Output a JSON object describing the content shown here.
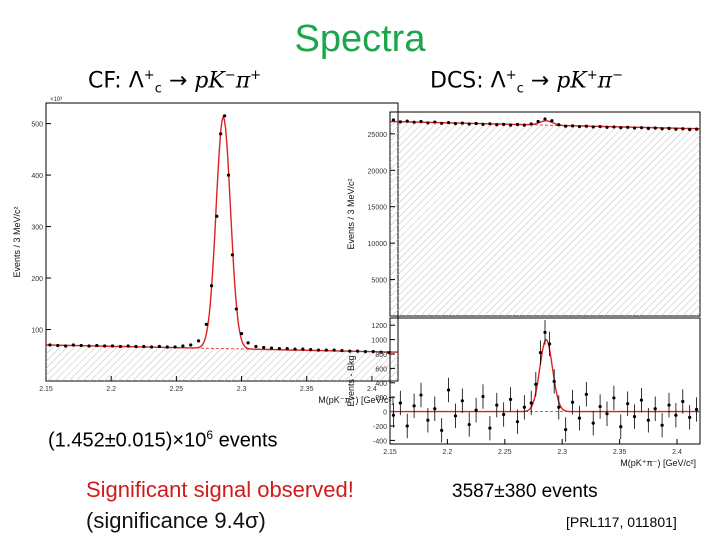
{
  "title": "Spectra",
  "cf": {
    "label_prefix": "CF:",
    "events_text": "(1.452±0.015)×10",
    "events_exp": "6",
    "events_suffix": " events"
  },
  "dcs": {
    "label_prefix": "DCS:",
    "events_text": "3587±380  events"
  },
  "notes": {
    "signal": "Significant signal observed!",
    "significance": "(significance 9.4σ)",
    "reference": "[PRL117, 011801]"
  },
  "colors": {
    "title": "#1aa64a",
    "fit": "#e02020",
    "signal_note": "#d11a1a",
    "hatch": "#bdbdbd"
  },
  "chart_data": [
    {
      "type": "scatter",
      "name": "cf",
      "title": "",
      "xlabel": "M(pK⁻π⁺) [GeV/c²]",
      "ylabel": "Events / 3 MeV/c²",
      "y_scale_label": "×10³",
      "xlim": [
        2.15,
        2.42
      ],
      "ylim": [
        0,
        540
      ],
      "xticks": [
        2.15,
        2.2,
        2.25,
        2.3,
        2.35,
        2.4
      ],
      "xtick_labels": [
        "2.15",
        "2.2",
        "2.25",
        "2.3",
        "2.35",
        "2.4"
      ],
      "yticks": [
        100,
        200,
        300,
        400,
        500
      ],
      "ytick_labels": [
        "100",
        "200",
        "300",
        "400",
        "500"
      ],
      "background_level": 70,
      "peak_center": 2.286,
      "peak_height": 450,
      "peak_sigma": 0.0055,
      "points": [
        [
          2.153,
          70
        ],
        [
          2.159,
          69
        ],
        [
          2.165,
          68
        ],
        [
          2.171,
          70
        ],
        [
          2.177,
          69
        ],
        [
          2.183,
          68
        ],
        [
          2.189,
          69
        ],
        [
          2.195,
          68
        ],
        [
          2.201,
          68
        ],
        [
          2.207,
          67
        ],
        [
          2.213,
          68
        ],
        [
          2.219,
          67
        ],
        [
          2.225,
          67
        ],
        [
          2.231,
          66
        ],
        [
          2.237,
          67
        ],
        [
          2.243,
          66
        ],
        [
          2.249,
          66
        ],
        [
          2.255,
          68
        ],
        [
          2.261,
          70
        ],
        [
          2.267,
          78
        ],
        [
          2.273,
          110
        ],
        [
          2.277,
          185
        ],
        [
          2.281,
          320
        ],
        [
          2.284,
          480
        ],
        [
          2.287,
          515
        ],
        [
          2.29,
          400
        ],
        [
          2.293,
          245
        ],
        [
          2.296,
          140
        ],
        [
          2.3,
          92
        ],
        [
          2.305,
          74
        ],
        [
          2.311,
          67
        ],
        [
          2.317,
          65
        ],
        [
          2.323,
          64
        ],
        [
          2.329,
          63
        ],
        [
          2.335,
          63
        ],
        [
          2.341,
          62
        ],
        [
          2.347,
          62
        ],
        [
          2.353,
          61
        ],
        [
          2.359,
          60
        ],
        [
          2.365,
          60
        ],
        [
          2.371,
          60
        ],
        [
          2.377,
          59
        ],
        [
          2.383,
          58
        ],
        [
          2.389,
          58
        ],
        [
          2.395,
          57
        ],
        [
          2.401,
          57
        ],
        [
          2.407,
          56
        ],
        [
          2.413,
          55
        ]
      ]
    },
    {
      "type": "scatter",
      "name": "dcs-total",
      "title": "",
      "xlabel": "",
      "ylabel": "Events / 3 MeV/c²",
      "xlim": [
        2.15,
        2.42
      ],
      "ylim": [
        0,
        28000
      ],
      "yticks": [
        5000,
        10000,
        15000,
        20000,
        25000
      ],
      "ytick_labels": [
        "5000",
        "10000",
        "15000",
        "20000",
        "25000"
      ],
      "background_start": 26700,
      "background_end": 25700,
      "peak_center": 2.286,
      "peak_height": 600,
      "peak_sigma": 0.0055,
      "points": [
        [
          2.153,
          26900
        ],
        [
          2.159,
          26650
        ],
        [
          2.165,
          26750
        ],
        [
          2.171,
          26600
        ],
        [
          2.177,
          26700
        ],
        [
          2.183,
          26500
        ],
        [
          2.189,
          26620
        ],
        [
          2.195,
          26450
        ],
        [
          2.201,
          26550
        ],
        [
          2.207,
          26400
        ],
        [
          2.213,
          26480
        ],
        [
          2.219,
          26350
        ],
        [
          2.225,
          26420
        ],
        [
          2.231,
          26300
        ],
        [
          2.237,
          26380
        ],
        [
          2.243,
          26250
        ],
        [
          2.249,
          26300
        ],
        [
          2.255,
          26200
        ],
        [
          2.261,
          26280
        ],
        [
          2.267,
          26200
        ],
        [
          2.273,
          26350
        ],
        [
          2.279,
          26700
        ],
        [
          2.285,
          27050
        ],
        [
          2.291,
          26800
        ],
        [
          2.297,
          26250
        ],
        [
          2.303,
          26050
        ],
        [
          2.309,
          26100
        ],
        [
          2.315,
          26000
        ],
        [
          2.321,
          26050
        ],
        [
          2.327,
          25950
        ],
        [
          2.333,
          26000
        ],
        [
          2.339,
          25900
        ],
        [
          2.345,
          25950
        ],
        [
          2.351,
          25850
        ],
        [
          2.357,
          25900
        ],
        [
          2.363,
          25800
        ],
        [
          2.369,
          25850
        ],
        [
          2.375,
          25750
        ],
        [
          2.381,
          25800
        ],
        [
          2.387,
          25700
        ],
        [
          2.393,
          25750
        ],
        [
          2.399,
          25650
        ],
        [
          2.405,
          25700
        ],
        [
          2.411,
          25600
        ],
        [
          2.417,
          25650
        ]
      ]
    },
    {
      "type": "scatter",
      "name": "dcs-subtracted",
      "title": "",
      "xlabel": "M(pK⁺π⁻) [GeV/c²]",
      "ylabel": "Events - Bkg",
      "xlim": [
        2.15,
        2.42
      ],
      "ylim": [
        -450,
        1300
      ],
      "xticks": [
        2.15,
        2.2,
        2.25,
        2.3,
        2.35,
        2.4
      ],
      "xtick_labels": [
        "2.15",
        "2.2",
        "2.25",
        "2.3",
        "2.35",
        "2.4"
      ],
      "yticks": [
        -400,
        -200,
        0,
        200,
        400,
        600,
        800,
        1000,
        1200
      ],
      "ytick_labels": [
        "-400",
        "-200",
        "0",
        "200",
        "400",
        "600",
        "800",
        "1000",
        "1200"
      ],
      "peak_center": 2.286,
      "peak_height": 1000,
      "peak_sigma": 0.0055,
      "points": [
        [
          2.153,
          -50
        ],
        [
          2.159,
          120
        ],
        [
          2.165,
          -200
        ],
        [
          2.171,
          80
        ],
        [
          2.177,
          230
        ],
        [
          2.183,
          -120
        ],
        [
          2.189,
          40
        ],
        [
          2.195,
          -260
        ],
        [
          2.201,
          300
        ],
        [
          2.207,
          -60
        ],
        [
          2.213,
          150
        ],
        [
          2.219,
          -180
        ],
        [
          2.225,
          20
        ],
        [
          2.231,
          210
        ],
        [
          2.237,
          -230
        ],
        [
          2.243,
          90
        ],
        [
          2.249,
          -40
        ],
        [
          2.255,
          170
        ],
        [
          2.261,
          -140
        ],
        [
          2.267,
          60
        ],
        [
          2.273,
          120
        ],
        [
          2.277,
          380
        ],
        [
          2.281,
          820
        ],
        [
          2.285,
          1100
        ],
        [
          2.289,
          940
        ],
        [
          2.293,
          420
        ],
        [
          2.297,
          60
        ],
        [
          2.303,
          -250
        ],
        [
          2.309,
          130
        ],
        [
          2.315,
          -90
        ],
        [
          2.321,
          240
        ],
        [
          2.327,
          -160
        ],
        [
          2.333,
          70
        ],
        [
          2.339,
          -30
        ],
        [
          2.345,
          190
        ],
        [
          2.351,
          -210
        ],
        [
          2.357,
          110
        ],
        [
          2.363,
          -70
        ],
        [
          2.369,
          160
        ],
        [
          2.375,
          -120
        ],
        [
          2.381,
          40
        ],
        [
          2.387,
          -190
        ],
        [
          2.393,
          90
        ],
        [
          2.399,
          -50
        ],
        [
          2.405,
          140
        ],
        [
          2.411,
          -80
        ],
        [
          2.417,
          30
        ]
      ]
    }
  ]
}
